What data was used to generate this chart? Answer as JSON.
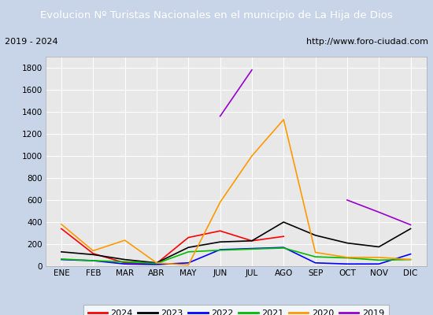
{
  "title": "Evolucion Nº Turistas Nacionales en el municipio de La Hija de Dios",
  "subtitle_left": "2019 - 2024",
  "subtitle_right": "http://www.foro-ciudad.com",
  "title_bg_color": "#4e7abf",
  "title_text_color": "#ffffff",
  "subtitle_bg_color": "#e8e8e8",
  "plot_bg_color": "#e8e8e8",
  "months": [
    "ENE",
    "FEB",
    "MAR",
    "ABR",
    "MAY",
    "JUN",
    "JUL",
    "AGO",
    "SEP",
    "OCT",
    "NOV",
    "DIC"
  ],
  "series": {
    "2024": {
      "color": "#ff0000",
      "data": [
        340,
        115,
        30,
        25,
        260,
        320,
        230,
        270,
        null,
        null,
        null,
        null
      ]
    },
    "2023": {
      "color": "#000000",
      "data": [
        130,
        105,
        60,
        30,
        170,
        220,
        230,
        400,
        280,
        210,
        175,
        340
      ]
    },
    "2022": {
      "color": "#0000ff",
      "data": [
        60,
        50,
        20,
        15,
        30,
        150,
        160,
        170,
        30,
        20,
        20,
        110
      ]
    },
    "2021": {
      "color": "#00bb00",
      "data": [
        65,
        50,
        40,
        25,
        130,
        145,
        155,
        165,
        85,
        75,
        55,
        60
      ]
    },
    "2020": {
      "color": "#ff9900",
      "data": [
        380,
        140,
        235,
        30,
        10,
        580,
        1000,
        1330,
        125,
        80,
        80,
        60
      ]
    },
    "2019": {
      "color": "#9900cc",
      "data": [
        null,
        null,
        null,
        null,
        null,
        1360,
        1780,
        null,
        null,
        600,
        490,
        375
      ]
    }
  },
  "ylim": [
    0,
    1900
  ],
  "yticks": [
    0,
    200,
    400,
    600,
    800,
    1000,
    1200,
    1400,
    1600,
    1800
  ],
  "figsize": [
    5.5,
    4.0
  ],
  "dpi": 100
}
